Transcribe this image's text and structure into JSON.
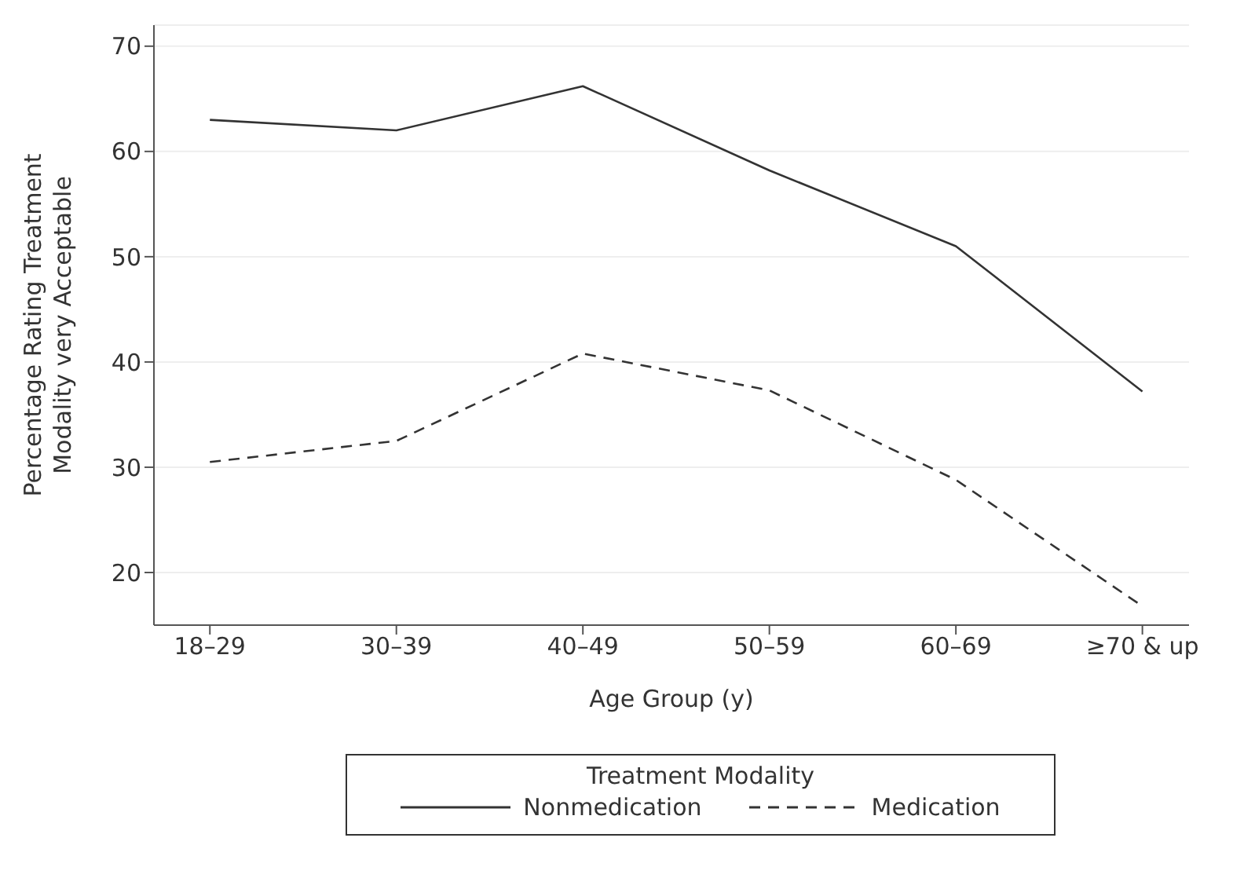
{
  "chart_data": {
    "type": "line",
    "xlabel": "Age Group (y)",
    "ylabel": "Percentage Rating Treatment Modality very Acceptable",
    "legend_title": "Treatment Modality",
    "categories": [
      "18–29",
      "30–39",
      "40–49",
      "50–59",
      "60–69",
      "≥70 & up"
    ],
    "series": [
      {
        "name": "Nonmedication",
        "color": "#333333",
        "line_style": "solid",
        "values": [
          63,
          62,
          66.2,
          58.2,
          51,
          37.2
        ]
      },
      {
        "name": "Medication",
        "color": "#333333",
        "line_style": "dashed",
        "values": [
          30.5,
          32.5,
          40.8,
          37.3,
          28.8,
          16.8
        ]
      }
    ],
    "ylim": [
      15,
      72
    ],
    "yticks": [
      20,
      30,
      40,
      50,
      60,
      70
    ],
    "grid": "y",
    "legend": "bottom",
    "marker": "none"
  }
}
